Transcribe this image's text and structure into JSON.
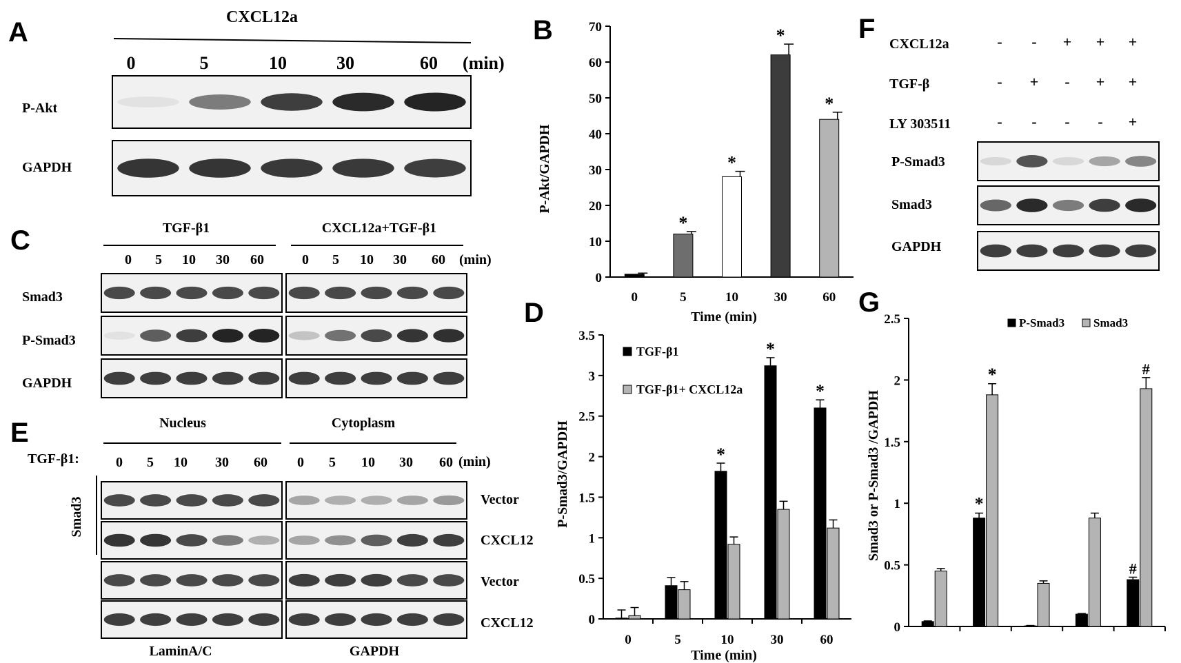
{
  "panels": {
    "A": {
      "label": "A",
      "treatment": "CXCL12a",
      "times": [
        "0",
        "5",
        "10",
        "30",
        "60"
      ],
      "unit": "(min)",
      "rows": [
        "P-Akt",
        "GAPDH"
      ],
      "bands": [
        [
          0.05,
          0.55,
          0.85,
          0.95,
          0.98
        ],
        [
          0.9,
          0.9,
          0.88,
          0.88,
          0.85
        ]
      ]
    },
    "C": {
      "label": "C",
      "group1": "TGF-β1",
      "group2": "CXCL12a+TGF-β1",
      "times": [
        "0",
        "5",
        "10",
        "30",
        "60"
      ],
      "unit": "(min)",
      "rows": [
        "Smad3",
        "P-Smad3",
        "GAPDH"
      ],
      "bands": [
        [
          [
            0.8,
            0.8,
            0.8,
            0.8,
            0.8
          ],
          [
            0.8,
            0.8,
            0.8,
            0.8,
            0.8
          ]
        ],
        [
          [
            0.05,
            0.7,
            0.85,
            0.98,
            0.98
          ],
          [
            0.2,
            0.6,
            0.8,
            0.9,
            0.92
          ]
        ],
        [
          [
            0.85,
            0.85,
            0.85,
            0.85,
            0.85
          ],
          [
            0.85,
            0.85,
            0.85,
            0.85,
            0.85
          ]
        ]
      ]
    },
    "E": {
      "label": "E",
      "group1": "Nucleus",
      "group2": "Cytoplasm",
      "row_label": "TGF-β1:",
      "times": [
        "0",
        "5",
        "10",
        "30",
        "60"
      ],
      "unit": "(min)",
      "side_label": "Smad3",
      "right_labels": [
        "Vector",
        "CXCL12",
        "Vector",
        "CXCL12"
      ],
      "bottom_labels": [
        "LaminA/C",
        "GAPDH"
      ],
      "bands": [
        [
          [
            0.8,
            0.8,
            0.8,
            0.8,
            0.8
          ],
          [
            0.35,
            0.3,
            0.3,
            0.35,
            0.4
          ]
        ],
        [
          [
            0.9,
            0.9,
            0.8,
            0.55,
            0.3
          ],
          [
            0.35,
            0.45,
            0.7,
            0.85,
            0.85
          ]
        ],
        [
          [
            0.8,
            0.8,
            0.8,
            0.8,
            0.8
          ],
          [
            0.85,
            0.85,
            0.85,
            0.8,
            0.8
          ]
        ],
        [
          [
            0.85,
            0.85,
            0.85,
            0.85,
            0.85
          ],
          [
            0.85,
            0.85,
            0.85,
            0.85,
            0.85
          ]
        ]
      ]
    },
    "F": {
      "label": "F",
      "conditions": [
        {
          "name": "CXCL12a",
          "signs": [
            "-",
            "-",
            "+",
            "+",
            "+"
          ]
        },
        {
          "name": "TGF-β",
          "signs": [
            "-",
            "+",
            "-",
            "+",
            "+"
          ]
        },
        {
          "name": "LY 303511",
          "signs": [
            "-",
            "-",
            "-",
            "-",
            "+"
          ]
        }
      ],
      "rows": [
        "P-Smad3",
        "Smad3",
        "GAPDH"
      ],
      "bands": [
        [
          0.1,
          0.75,
          0.1,
          0.35,
          0.5
        ],
        [
          0.65,
          0.95,
          0.55,
          0.85,
          0.95
        ],
        [
          0.85,
          0.85,
          0.85,
          0.85,
          0.85
        ]
      ]
    }
  },
  "colors": {
    "bar_B": [
      "#000000",
      "#6e6e6e",
      "#ffffff",
      "#3c3c3c",
      "#b4b4b4"
    ],
    "series1": "#000000",
    "series2": "#b4b4b4"
  },
  "chart_data": [
    {
      "panel": "B",
      "type": "bar",
      "categories": [
        "0",
        "5",
        "10",
        "30",
        "60"
      ],
      "values": [
        0.8,
        12,
        28,
        62,
        44
      ],
      "errors": [
        0.3,
        0.7,
        1.5,
        3,
        2
      ],
      "annotations": [
        "",
        "*",
        "*",
        "*",
        "*"
      ],
      "title": "",
      "xlabel": "Time (min)",
      "ylabel": "P-Akt/GAPDH",
      "ylim": [
        0,
        70
      ],
      "yticks": [
        "0",
        "10",
        "20",
        "30",
        "40",
        "50",
        "60",
        "70"
      ],
      "grid": false
    },
    {
      "panel": "D",
      "type": "bar",
      "categories": [
        "0",
        "5",
        "10",
        "30",
        "60"
      ],
      "series": [
        {
          "name": "TGF-β1",
          "values": [
            0.01,
            0.41,
            1.82,
            3.12,
            2.6
          ],
          "errors": [
            0.1,
            0.1,
            0.1,
            0.1,
            0.1
          ],
          "annotations": [
            "",
            "",
            "*",
            "*",
            "*"
          ]
        },
        {
          "name": "TGF-β1+ CXCL12a",
          "values": [
            0.04,
            0.36,
            0.92,
            1.35,
            1.12
          ],
          "errors": [
            0.1,
            0.1,
            0.09,
            0.1,
            0.1
          ],
          "annotations": [
            "",
            "",
            "",
            "",
            ""
          ]
        }
      ],
      "title": "",
      "xlabel": "Time (min)",
      "ylabel": "P-Smad3/GAPDH",
      "ylim": [
        0,
        3.5
      ],
      "yticks": [
        "0",
        "0.5",
        "1",
        "1.5",
        "2",
        "2.5",
        "3",
        "3.5"
      ],
      "legend": "top-left",
      "grid": false
    },
    {
      "panel": "G",
      "type": "bar",
      "categories": [
        "",
        "",
        "",
        "",
        ""
      ],
      "series": [
        {
          "name": "P-Smad3",
          "values": [
            0.04,
            0.88,
            0.005,
            0.1,
            0.38
          ],
          "errors": [
            0.005,
            0.04,
            0.003,
            0.005,
            0.02
          ],
          "annotations": [
            "",
            "*",
            "",
            "",
            "#"
          ]
        },
        {
          "name": "Smad3",
          "values": [
            0.45,
            1.88,
            0.35,
            0.88,
            1.93
          ],
          "errors": [
            0.02,
            0.09,
            0.02,
            0.04,
            0.09
          ],
          "annotations": [
            "",
            "*",
            "",
            "",
            "#"
          ]
        }
      ],
      "title": "",
      "xlabel": "",
      "ylabel": "Smad3 or P-Smad3 /GAPDH",
      "ylim": [
        0,
        2.5
      ],
      "yticks": [
        "0",
        "0.5",
        "1",
        "1.5",
        "2",
        "2.5"
      ],
      "legend": "top-center",
      "grid": false
    }
  ]
}
